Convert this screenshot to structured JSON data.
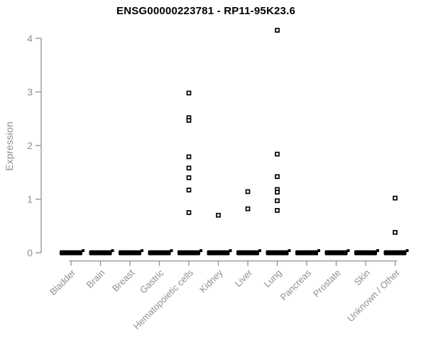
{
  "title": "ENSG00000223781 - RP11-95K23.6",
  "chart_data": {
    "type": "scatter",
    "subtype": "strip-plot-with-zero-clusters",
    "title": "ENSG00000223781 - RP11-95K23.6",
    "xlabel": "",
    "ylabel": "Expression",
    "ylim": [
      0,
      4.2
    ],
    "yticks": [
      0,
      1,
      2,
      3,
      4
    ],
    "grid": false,
    "legend": false,
    "categories": [
      "Bladder",
      "Brain",
      "Breast",
      "Gastric",
      "Hematopoietic cells",
      "Kidney",
      "Liver",
      "Lung",
      "Pancreas",
      "Prostate",
      "Skin",
      "Unknown / Other"
    ],
    "zero_cluster_note": "every category shows a dense bar of samples at expression 0",
    "zero_cluster": [
      true,
      true,
      true,
      true,
      true,
      true,
      true,
      true,
      true,
      true,
      true,
      true
    ],
    "outlier_series": [
      {
        "name": "Bladder",
        "values": []
      },
      {
        "name": "Brain",
        "values": []
      },
      {
        "name": "Breast",
        "values": []
      },
      {
        "name": "Gastric",
        "values": []
      },
      {
        "name": "Hematopoietic cells",
        "values": [
          2.98,
          2.52,
          2.47,
          1.79,
          1.58,
          1.4,
          1.17,
          0.75
        ]
      },
      {
        "name": "Kidney",
        "values": [
          0.7
        ]
      },
      {
        "name": "Liver",
        "values": [
          1.14,
          0.82
        ]
      },
      {
        "name": "Lung",
        "values": [
          4.15,
          1.84,
          1.42,
          1.18,
          1.13,
          0.97,
          0.79
        ]
      },
      {
        "name": "Pancreas",
        "values": []
      },
      {
        "name": "Prostate",
        "values": []
      },
      {
        "name": "Skin",
        "values": []
      },
      {
        "name": "Unknown / Other",
        "values": [
          1.02,
          0.38
        ]
      }
    ],
    "colors": {
      "background": "#ffffff",
      "title": "#000000",
      "axis": "#8f8f8f",
      "tick_label": "#8f8f8f",
      "point": "#000000",
      "point_fill": "#ffffff"
    }
  }
}
